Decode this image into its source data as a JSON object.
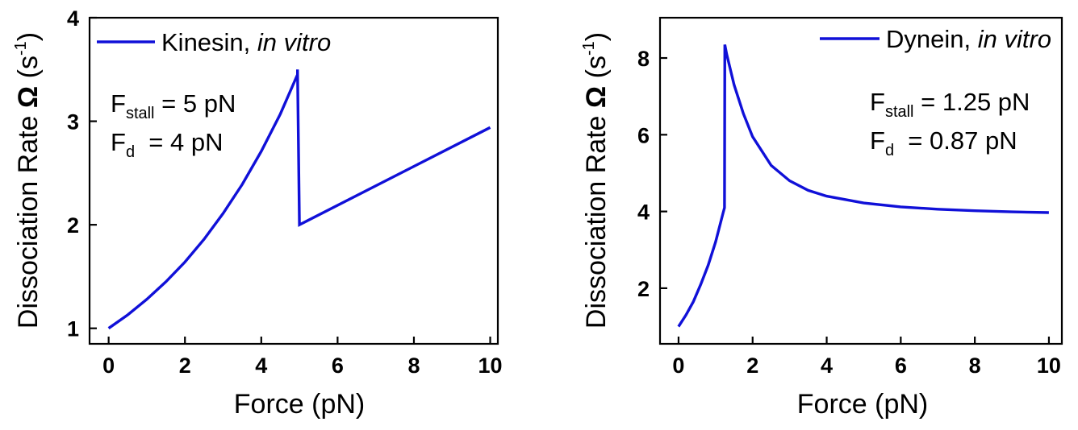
{
  "chart_data": [
    {
      "type": "line",
      "xlabel": "Force (pN)",
      "ylabel_main": "Dissociation Rate ",
      "ylabel_symbol": "Ω",
      "ylabel_unit_open": " (s",
      "ylabel_unit_exp": "-1",
      "ylabel_unit_close": ")",
      "xlim": [
        -0.5,
        10.2
      ],
      "ylim": [
        0.85,
        4.0
      ],
      "xticks": [
        0,
        2,
        4,
        6,
        8,
        10
      ],
      "yticks": [
        1,
        2,
        3,
        4
      ],
      "grid": false,
      "legend_position": "top-left",
      "series": [
        {
          "name_main": "Kinesin, ",
          "name_italic": "in vitro",
          "color": "#1010d8",
          "x": [
            0,
            0.5,
            1,
            1.5,
            2,
            2.5,
            3,
            3.5,
            4,
            4.5,
            4.95,
            4.95,
            5.0,
            10
          ],
          "y": [
            1.0,
            1.13,
            1.28,
            1.45,
            1.64,
            1.86,
            2.11,
            2.39,
            2.71,
            3.07,
            3.45,
            3.5,
            2.0,
            2.94
          ]
        }
      ],
      "annotations": [
        {
          "main": "F",
          "sub": "stall",
          "rest": " = 5 pN"
        },
        {
          "main": "F",
          "sub": "d",
          "rest": "  = 4 pN"
        }
      ]
    },
    {
      "type": "line",
      "xlabel": "Force (pN)",
      "ylabel_main": "Dissociation Rate ",
      "ylabel_symbol": "Ω",
      "ylabel_unit_open": " (s",
      "ylabel_unit_exp": "-1",
      "ylabel_unit_close": ")",
      "xlim": [
        -0.5,
        10.35
      ],
      "ylim": [
        0.55,
        9.05
      ],
      "xticks": [
        0,
        2,
        4,
        6,
        8,
        10
      ],
      "yticks": [
        2,
        4,
        6,
        8
      ],
      "grid": false,
      "legend_position": "top-right",
      "series": [
        {
          "name_main": "Dynein, ",
          "name_italic": "in vitro",
          "color": "#1010d8",
          "x": [
            0,
            0.2,
            0.4,
            0.6,
            0.8,
            1.0,
            1.2,
            1.24,
            1.25,
            1.3,
            1.5,
            1.75,
            2.0,
            2.5,
            3.0,
            3.5,
            4.0,
            5.0,
            6.0,
            7.0,
            8.0,
            9.0,
            10.0
          ],
          "y": [
            1.0,
            1.3,
            1.65,
            2.1,
            2.6,
            3.2,
            3.95,
            4.1,
            8.35,
            8.1,
            7.3,
            6.55,
            5.95,
            5.2,
            4.8,
            4.55,
            4.4,
            4.22,
            4.12,
            4.06,
            4.02,
            3.99,
            3.97
          ]
        }
      ],
      "annotations": [
        {
          "main": "F",
          "sub": "stall",
          "rest": " = 1.25 pN"
        },
        {
          "main": "F",
          "sub": "d",
          "rest": "  = 0.87 pN"
        }
      ]
    }
  ]
}
